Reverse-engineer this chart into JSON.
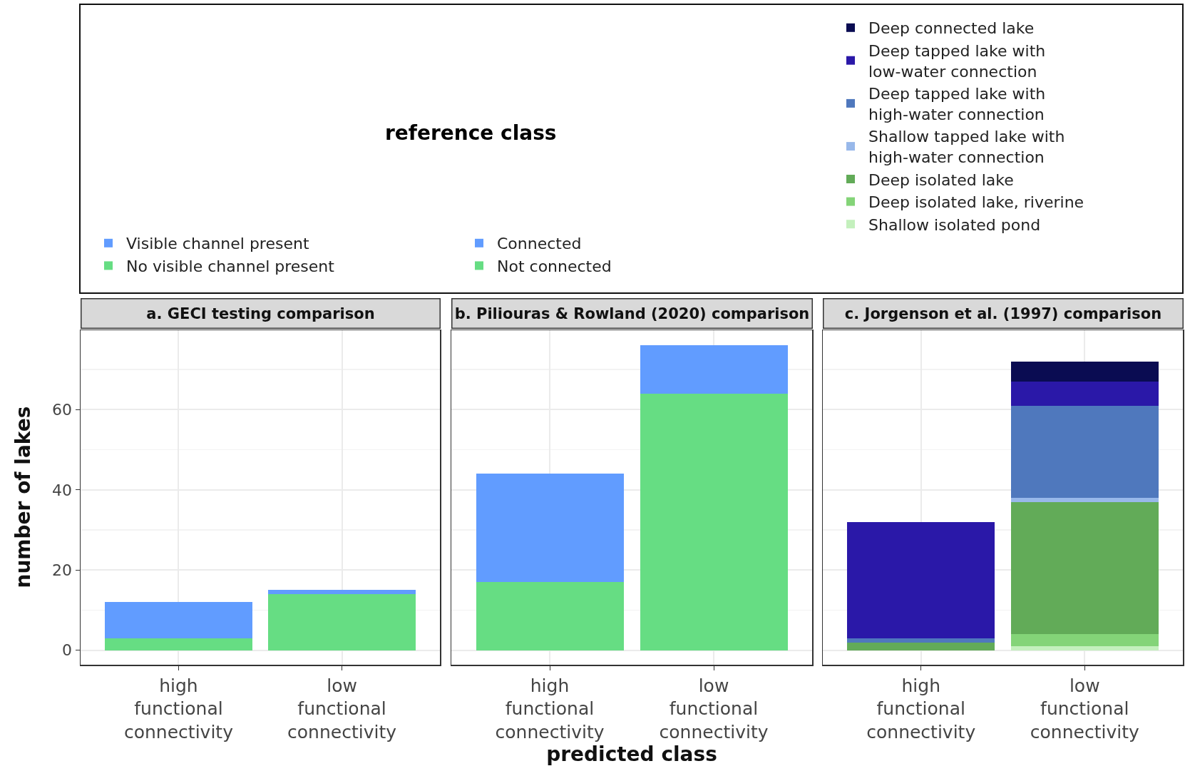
{
  "chart_data": [
    {
      "type": "bar",
      "title": "a. GECI testing comparison",
      "ylabel": "number of lakes",
      "legend_title": "reference class",
      "categories": [
        "high functional connectivity",
        "low functional connectivity"
      ],
      "stacked": true,
      "ylim": [
        -3.6,
        79.8
      ],
      "yticks": [
        0,
        20,
        40,
        60
      ],
      "grid": true,
      "legend": "top",
      "series": [
        {
          "name": "No visible channel present",
          "color": "#66dd83",
          "values": [
            3,
            14
          ]
        },
        {
          "name": "Visible channel present",
          "color": "#619cff",
          "values": [
            9,
            1
          ]
        }
      ]
    },
    {
      "type": "bar",
      "title": "b. Piliouras & Rowland (2020) comparison",
      "xlabel": "predicted class",
      "categories": [
        "high functional connectivity",
        "low functional connectivity"
      ],
      "stacked": true,
      "ylim": [
        -3.6,
        79.8
      ],
      "yticks": [
        0,
        20,
        40,
        60
      ],
      "grid": true,
      "legend": "top",
      "tick_labels": "x",
      "series": [
        {
          "name": "Not connected",
          "color": "#66dd83",
          "values": [
            17,
            64
          ]
        },
        {
          "name": "Connected",
          "color": "#619cff",
          "values": [
            27,
            12
          ]
        }
      ]
    },
    {
      "type": "bar",
      "title": "c. Jorgenson et al. (1997) comparison",
      "categories": [
        "high functional connectivity",
        "low functional connectivity"
      ],
      "stacked": true,
      "ylim": [
        -3.6,
        79.8
      ],
      "yticks": [
        0,
        20,
        40,
        60
      ],
      "grid": true,
      "legend": "top",
      "tick_labels": "x",
      "series": [
        {
          "name": "Shallow isolated pond",
          "color": "#c4f0bd",
          "values": [
            0,
            1
          ]
        },
        {
          "name": "Deep isolated lake, riverine",
          "color": "#84d478",
          "values": [
            0,
            3
          ]
        },
        {
          "name": "Deep isolated lake",
          "color": "#62ab58",
          "values": [
            2,
            33
          ]
        },
        {
          "name": "Shallow tapped lake with high-water connection",
          "color": "#98b8ea",
          "values": [
            0,
            1
          ]
        },
        {
          "name": "Deep tapped lake with high-water connection",
          "color": "#4f78bd",
          "values": [
            1,
            23
          ]
        },
        {
          "name": "Deep tapped lake with low-water connection",
          "color": "#2a18a8",
          "values": [
            29,
            6
          ]
        },
        {
          "name": "Deep connected lake",
          "color": "#0a0c52",
          "values": [
            0,
            5
          ]
        }
      ]
    }
  ]
}
